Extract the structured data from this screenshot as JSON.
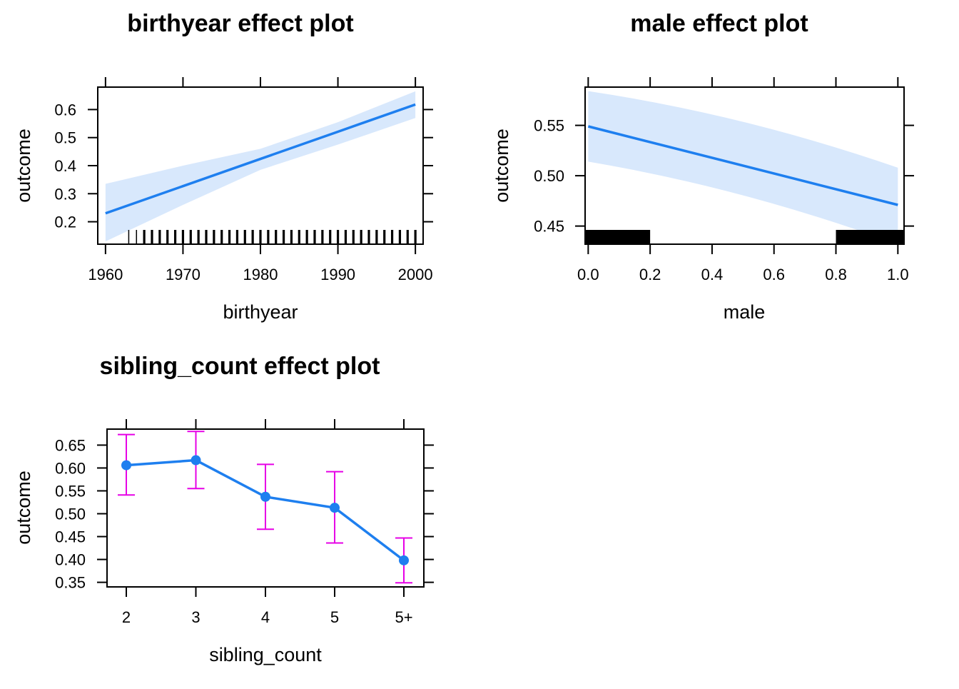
{
  "chart_data": [
    {
      "type": "line",
      "title": "birthyear effect plot",
      "xlabel": "birthyear",
      "ylabel": "outcome",
      "xlim": [
        1959,
        2001
      ],
      "ylim": [
        0.12,
        0.68
      ],
      "xticks": [
        1960,
        1970,
        1980,
        1990,
        2000
      ],
      "yticks": [
        0.2,
        0.3,
        0.4,
        0.5,
        0.6
      ],
      "series": [
        {
          "x": [
            1960,
            1970,
            1980,
            1990,
            2000
          ],
          "y": [
            0.23,
            0.327,
            0.424,
            0.521,
            0.618
          ],
          "lower": [
            0.13,
            0.26,
            0.385,
            0.475,
            0.57
          ],
          "upper": [
            0.335,
            0.4,
            0.46,
            0.555,
            0.665
          ]
        }
      ],
      "confidence_band": true,
      "rug": true,
      "colors": {
        "line": "#1e7fef",
        "band": "#d8e8fc"
      }
    },
    {
      "type": "line",
      "title": "male effect plot",
      "xlabel": "male",
      "ylabel": "outcome",
      "xlim": [
        -0.01,
        1.02
      ],
      "ylim": [
        0.432,
        0.588
      ],
      "xticks": [
        "0.0",
        "0.2",
        "0.4",
        "0.6",
        "0.8",
        "1.0"
      ],
      "yticks": [
        "0.45",
        "0.50",
        "0.55"
      ],
      "series": [
        {
          "x": [
            0,
            1
          ],
          "y": [
            0.549,
            0.471
          ],
          "lower": [
            0.514,
            0.432
          ],
          "upper": [
            0.584,
            0.508
          ]
        }
      ],
      "confidence_band": true,
      "rug": true,
      "colors": {
        "line": "#1e7fef",
        "band": "#d8e8fc"
      }
    },
    {
      "type": "line",
      "title": "sibling_count effect plot",
      "xlabel": "sibling_count",
      "ylabel": "outcome",
      "categories": [
        "2",
        "3",
        "4",
        "5",
        "5+"
      ],
      "ylim": [
        0.34,
        0.685
      ],
      "yticks": [
        "0.35",
        "0.40",
        "0.45",
        "0.50",
        "0.55",
        "0.60",
        "0.65"
      ],
      "series": [
        {
          "values": [
            0.606,
            0.617,
            0.537,
            0.513,
            0.398
          ],
          "lower": [
            0.541,
            0.555,
            0.466,
            0.436,
            0.349
          ],
          "upper": [
            0.673,
            0.68,
            0.608,
            0.592,
            0.447
          ]
        }
      ],
      "error_bars": true,
      "colors": {
        "line": "#1e7fef",
        "errorbar": "#e600e6"
      }
    }
  ]
}
